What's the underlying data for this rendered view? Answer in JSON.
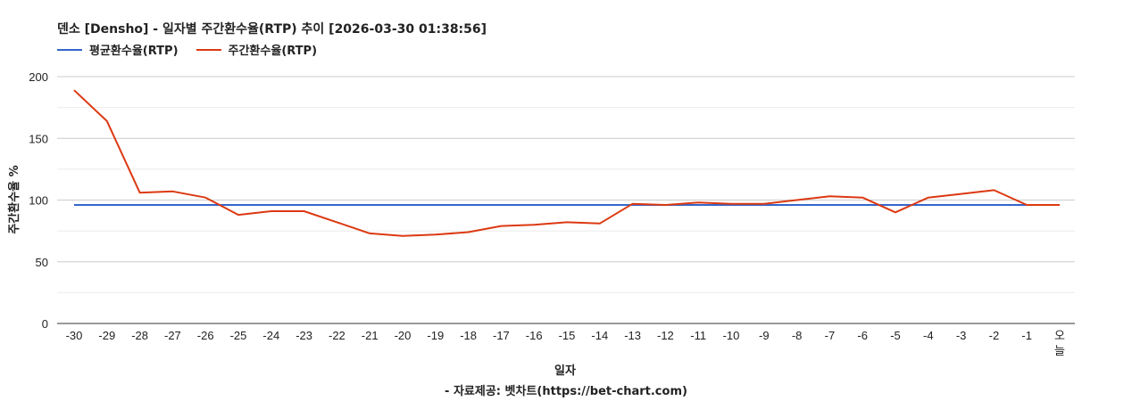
{
  "chart_data": {
    "type": "line",
    "title": "덴소 [Densho] - 일자별 주간환수율(RTP) 추이 [2026-03-30 01:38:56]",
    "xlabel": "일자",
    "ylabel": "주간환수율 %",
    "ylim": [
      0,
      200
    ],
    "yticks": [
      0,
      50,
      100,
      150,
      200
    ],
    "grid": true,
    "legend_position": "top-left",
    "categories": [
      "-30",
      "-29",
      "-28",
      "-27",
      "-26",
      "-25",
      "-24",
      "-23",
      "-22",
      "-21",
      "-20",
      "-19",
      "-18",
      "-17",
      "-16",
      "-15",
      "-14",
      "-13",
      "-12",
      "-11",
      "-10",
      "-9",
      "-8",
      "-7",
      "-6",
      "-5",
      "-4",
      "-3",
      "-2",
      "-1",
      "오늘"
    ],
    "series": [
      {
        "name": "평균환수율(RTP)",
        "color": "#3366cc",
        "values": [
          96,
          96,
          96,
          96,
          96,
          96,
          96,
          96,
          96,
          96,
          96,
          96,
          96,
          96,
          96,
          96,
          96,
          96,
          96,
          96,
          96,
          96,
          96,
          96,
          96,
          96,
          96,
          96,
          96,
          96,
          96
        ]
      },
      {
        "name": "주간환수율(RTP)",
        "color": "#dc3912",
        "values": [
          189,
          164,
          106,
          107,
          102,
          88,
          91,
          91,
          82,
          73,
          71,
          72,
          74,
          79,
          80,
          82,
          81,
          97,
          96,
          98,
          97,
          97,
          100,
          103,
          102,
          90,
          102,
          105,
          108,
          96,
          96
        ]
      }
    ]
  },
  "source_text": "- 자료제공: 벳차트(https://bet-chart.com)"
}
